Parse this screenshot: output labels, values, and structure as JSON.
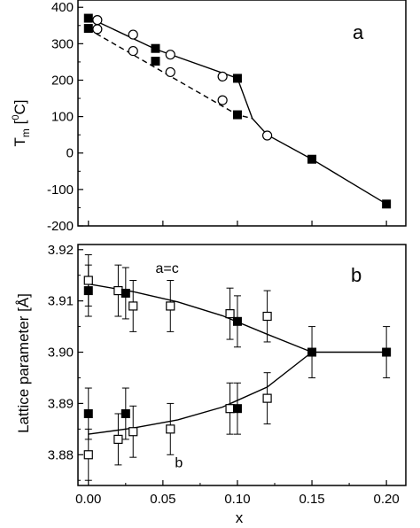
{
  "chart_data": [
    {
      "type": "scatter",
      "panel_label": "a",
      "ylabel": "T",
      "ylabel_sub": "m",
      "ylabel_unit_open": " [",
      "ylabel_unit_sup": "0",
      "ylabel_unit_close": "C]",
      "xlim": [
        -0.007,
        0.213
      ],
      "ylim": [
        -200,
        420
      ],
      "yticks": [
        -200,
        -100,
        0,
        100,
        200,
        300,
        400
      ],
      "grid": false,
      "series": [
        {
          "marker": "filled-square",
          "points": [
            [
              0.0,
              370
            ],
            [
              0.045,
              287
            ],
            [
              0.1,
              205
            ],
            [
              0.15,
              -17
            ],
            [
              0.2,
              -140
            ]
          ]
        },
        {
          "marker": "filled-square",
          "points": [
            [
              0.0,
              342
            ],
            [
              0.045,
              252
            ],
            [
              0.1,
              105
            ]
          ]
        },
        {
          "marker": "open-circle",
          "points": [
            [
              0.006,
              365
            ],
            [
              0.03,
              325
            ],
            [
              0.055,
              270
            ],
            [
              0.09,
              210
            ],
            [
              0.12,
              48
            ]
          ]
        },
        {
          "marker": "open-circle",
          "points": [
            [
              0.006,
              340
            ],
            [
              0.03,
              280
            ],
            [
              0.055,
              222
            ],
            [
              0.09,
              145
            ]
          ]
        }
      ],
      "lines": [
        {
          "style": "solid",
          "points": [
            [
              0.0,
              372
            ],
            [
              0.045,
              285
            ],
            [
              0.1,
              205
            ],
            [
              0.11,
              95
            ],
            [
              0.12,
              50
            ],
            [
              0.15,
              -17
            ],
            [
              0.2,
              -140
            ]
          ]
        },
        {
          "style": "dashed",
          "points": [
            [
              0.0,
              340
            ],
            [
              0.1,
              105
            ],
            [
              0.11,
              95
            ]
          ]
        }
      ]
    },
    {
      "type": "scatter",
      "panel_label": "b",
      "xlabel": "x",
      "ylabel": "Lattice parameter [Å]",
      "xlim": [
        -0.007,
        0.213
      ],
      "ylim": [
        3.874,
        3.921
      ],
      "xticks": [
        0.0,
        0.05,
        0.1,
        0.15,
        0.2
      ],
      "xtick_labels": [
        "0.00",
        "0.05",
        "0.10",
        "0.15",
        "0.20"
      ],
      "yticks": [
        3.88,
        3.89,
        3.9,
        3.91,
        3.92
      ],
      "ytick_labels": [
        "3.88",
        "3.89",
        "3.90",
        "3.91",
        "3.92"
      ],
      "grid": false,
      "annotations": [
        {
          "text": "a=c",
          "x": 0.045,
          "y": 3.9155
        },
        {
          "text": "b",
          "x": 0.058,
          "y": 3.8775
        }
      ],
      "series": [
        {
          "marker": "open-square",
          "error": 0.005,
          "points": [
            [
              0.0,
              3.914
            ],
            [
              0.02,
              3.912
            ],
            [
              0.03,
              3.909
            ],
            [
              0.055,
              3.909
            ],
            [
              0.095,
              3.9075
            ],
            [
              0.12,
              3.907
            ]
          ]
        },
        {
          "marker": "open-square",
          "error": 0.005,
          "points": [
            [
              0.0,
              3.88
            ],
            [
              0.02,
              3.883
            ],
            [
              0.03,
              3.8845
            ],
            [
              0.055,
              3.885
            ],
            [
              0.095,
              3.889
            ],
            [
              0.12,
              3.891
            ]
          ]
        },
        {
          "marker": "filled-square",
          "error": 0.005,
          "points": [
            [
              0.0,
              3.912
            ],
            [
              0.025,
              3.9115
            ],
            [
              0.1,
              3.906
            ],
            [
              0.15,
              3.9
            ],
            [
              0.2,
              3.9
            ]
          ]
        },
        {
          "marker": "filled-square",
          "error": 0.005,
          "points": [
            [
              0.0,
              3.888
            ],
            [
              0.025,
              3.888
            ],
            [
              0.1,
              3.889
            ]
          ]
        }
      ],
      "lines": [
        {
          "style": "solid",
          "points": [
            [
              0.0,
              3.9133
            ],
            [
              0.03,
              3.9118
            ],
            [
              0.06,
              3.9098
            ],
            [
              0.09,
              3.9071
            ],
            [
              0.12,
              3.9035
            ],
            [
              0.15,
              3.9
            ]
          ]
        },
        {
          "style": "solid",
          "points": [
            [
              0.0,
              3.884
            ],
            [
              0.03,
              3.8852
            ],
            [
              0.06,
              3.8868
            ],
            [
              0.09,
              3.8893
            ],
            [
              0.12,
              3.8932
            ],
            [
              0.15,
              3.9
            ]
          ]
        },
        {
          "style": "solid",
          "points": [
            [
              0.15,
              3.9
            ],
            [
              0.2,
              3.9
            ]
          ]
        }
      ]
    }
  ]
}
